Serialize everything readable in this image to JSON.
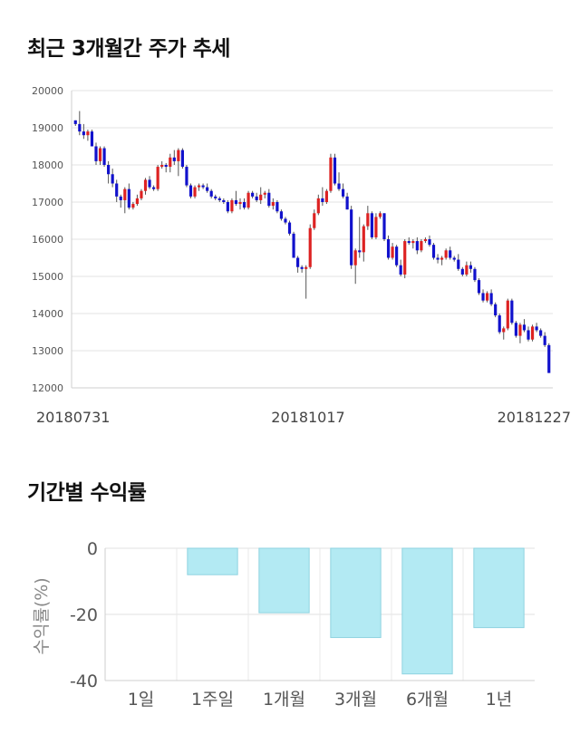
{
  "section1_title": "최근 3개월간 주가 추세",
  "section2_title": "기간별 수익률",
  "chart_data": [
    {
      "type": "candlestick",
      "title": "최근 3개월간 주가 추세",
      "y_ticks": [
        12000,
        13000,
        14000,
        15000,
        16000,
        17000,
        18000,
        19000,
        20000
      ],
      "ylim": [
        12000,
        20000
      ],
      "x_labels": [
        "20180731",
        "20181017",
        "20181227"
      ],
      "grid": true,
      "up_color": "#dd2222",
      "down_color": "#1111cc",
      "candles": [
        [
          19200,
          19200,
          19050,
          19100
        ],
        [
          19100,
          19450,
          18800,
          18900
        ],
        [
          18900,
          19100,
          18700,
          18800
        ],
        [
          18800,
          18950,
          18650,
          18900
        ],
        [
          18900,
          18950,
          18500,
          18500
        ],
        [
          18500,
          18600,
          18000,
          18100
        ],
        [
          18100,
          18500,
          18000,
          18450
        ],
        [
          18450,
          18500,
          17950,
          18000
        ],
        [
          18000,
          18100,
          17500,
          17750
        ],
        [
          17750,
          17900,
          17400,
          17500
        ],
        [
          17500,
          17600,
          17000,
          17150
        ],
        [
          17150,
          17200,
          16850,
          17050
        ],
        [
          17050,
          17400,
          16700,
          17350
        ],
        [
          17350,
          17500,
          16800,
          16850
        ],
        [
          16850,
          17000,
          16800,
          16950
        ],
        [
          16950,
          17200,
          16900,
          17100
        ],
        [
          17100,
          17350,
          17050,
          17300
        ],
        [
          17300,
          17650,
          17200,
          17600
        ],
        [
          17600,
          17700,
          17350,
          17400
        ],
        [
          17400,
          17450,
          17300,
          17350
        ],
        [
          17350,
          18000,
          17300,
          17950
        ],
        [
          17950,
          18100,
          17900,
          18000
        ],
        [
          18000,
          18050,
          17800,
          17950
        ],
        [
          17950,
          18300,
          17800,
          18200
        ],
        [
          18200,
          18400,
          18000,
          18100
        ],
        [
          18100,
          18450,
          17700,
          18400
        ],
        [
          18400,
          18450,
          17900,
          17950
        ],
        [
          17950,
          18000,
          17400,
          17450
        ],
        [
          17450,
          17500,
          17100,
          17150
        ],
        [
          17150,
          17450,
          17100,
          17400
        ],
        [
          17400,
          17500,
          17300,
          17450
        ],
        [
          17450,
          17500,
          17350,
          17400
        ],
        [
          17400,
          17500,
          17250,
          17300
        ],
        [
          17300,
          17350,
          17100,
          17150
        ],
        [
          17150,
          17200,
          17050,
          17100
        ],
        [
          17100,
          17150,
          17000,
          17050
        ],
        [
          17050,
          17100,
          16950,
          17000
        ],
        [
          17000,
          17050,
          16700,
          16750
        ],
        [
          16750,
          17100,
          16700,
          17050
        ],
        [
          17050,
          17300,
          16900,
          16950
        ],
        [
          16950,
          17100,
          16800,
          17000
        ],
        [
          17000,
          17100,
          16800,
          16850
        ],
        [
          16850,
          17300,
          16800,
          17250
        ],
        [
          17250,
          17300,
          17100,
          17150
        ],
        [
          17150,
          17250,
          17000,
          17050
        ],
        [
          17050,
          17400,
          16950,
          17200
        ],
        [
          17200,
          17300,
          17100,
          17250
        ],
        [
          17250,
          17350,
          16850,
          16900
        ],
        [
          16900,
          17100,
          16800,
          17000
        ],
        [
          17000,
          17050,
          16700,
          16750
        ],
        [
          16750,
          16800,
          16500,
          16550
        ],
        [
          16550,
          16600,
          16400,
          16450
        ],
        [
          16450,
          16500,
          16100,
          16150
        ],
        [
          16150,
          16200,
          15500,
          15500
        ],
        [
          15500,
          15550,
          15100,
          15250
        ],
        [
          15250,
          15300,
          15100,
          15200
        ],
        [
          15200,
          15300,
          14400,
          15250
        ],
        [
          15250,
          16400,
          15200,
          16300
        ],
        [
          16300,
          16800,
          16250,
          16700
        ],
        [
          16700,
          17200,
          16650,
          17100
        ],
        [
          17100,
          17400,
          16900,
          17000
        ],
        [
          17000,
          17350,
          16950,
          17300
        ],
        [
          17300,
          18300,
          17250,
          18200
        ],
        [
          18200,
          18300,
          17450,
          17500
        ],
        [
          17500,
          17800,
          17300,
          17350
        ],
        [
          17350,
          17500,
          17100,
          17150
        ],
        [
          17150,
          17250,
          16800,
          16800
        ],
        [
          16800,
          16900,
          15200,
          15300
        ],
        [
          15300,
          15750,
          14800,
          15700
        ],
        [
          15700,
          16600,
          15500,
          15650
        ],
        [
          15650,
          16400,
          15400,
          16350
        ],
        [
          16350,
          16900,
          16250,
          16700
        ],
        [
          16700,
          16750,
          16000,
          16050
        ],
        [
          16050,
          16700,
          16000,
          16600
        ],
        [
          16600,
          16750,
          16550,
          16700
        ],
        [
          16700,
          16700,
          15950,
          16000
        ],
        [
          16000,
          16100,
          15450,
          15500
        ],
        [
          15500,
          15900,
          15450,
          15800
        ],
        [
          15800,
          15850,
          15250,
          15300
        ],
        [
          15300,
          15450,
          15000,
          15050
        ],
        [
          15050,
          16000,
          14950,
          15950
        ],
        [
          15950,
          16050,
          15850,
          15900
        ],
        [
          15900,
          16000,
          15750,
          15950
        ],
        [
          15950,
          16050,
          15600,
          15700
        ],
        [
          15700,
          16000,
          15650,
          15950
        ],
        [
          15950,
          16050,
          15900,
          16000
        ],
        [
          16000,
          16100,
          15800,
          15850
        ],
        [
          15850,
          15900,
          15450,
          15500
        ],
        [
          15500,
          15600,
          15350,
          15450
        ],
        [
          15450,
          15550,
          15300,
          15500
        ],
        [
          15500,
          15750,
          15450,
          15700
        ],
        [
          15700,
          15800,
          15450,
          15500
        ],
        [
          15500,
          15550,
          15400,
          15450
        ],
        [
          15450,
          15600,
          15150,
          15200
        ],
        [
          15200,
          15250,
          15000,
          15050
        ],
        [
          15050,
          15400,
          15000,
          15300
        ],
        [
          15300,
          15400,
          15100,
          15200
        ],
        [
          15200,
          15250,
          14850,
          14900
        ],
        [
          14900,
          14950,
          14500,
          14550
        ],
        [
          14550,
          14650,
          14300,
          14350
        ],
        [
          14350,
          14600,
          14300,
          14550
        ],
        [
          14550,
          14650,
          14200,
          14250
        ],
        [
          14250,
          14300,
          13900,
          13950
        ],
        [
          13950,
          14000,
          13450,
          13500
        ],
        [
          13500,
          13650,
          13300,
          13600
        ],
        [
          13600,
          14400,
          13550,
          14350
        ],
        [
          14350,
          14400,
          13700,
          13750
        ],
        [
          13750,
          13800,
          13350,
          13400
        ],
        [
          13400,
          13750,
          13200,
          13700
        ],
        [
          13700,
          13850,
          13500,
          13550
        ],
        [
          13550,
          13650,
          13250,
          13300
        ],
        [
          13300,
          13700,
          13250,
          13650
        ],
        [
          13650,
          13750,
          13500,
          13550
        ],
        [
          13550,
          13600,
          13350,
          13400
        ],
        [
          13400,
          13500,
          13100,
          13150
        ],
        [
          13150,
          13200,
          12400,
          12400
        ]
      ]
    },
    {
      "type": "bar",
      "title": "기간별 수익률",
      "ylabel": "수익률(%)",
      "categories": [
        "1일",
        "1주일",
        "1개월",
        "3개월",
        "6개월",
        "1년"
      ],
      "values": [
        0,
        -8,
        -19.5,
        -27,
        -38,
        -24
      ],
      "y_ticks": [
        0,
        -20,
        -40
      ],
      "ylim": [
        -40,
        0
      ],
      "grid": true,
      "bar_color": "#b3eaf3"
    }
  ]
}
